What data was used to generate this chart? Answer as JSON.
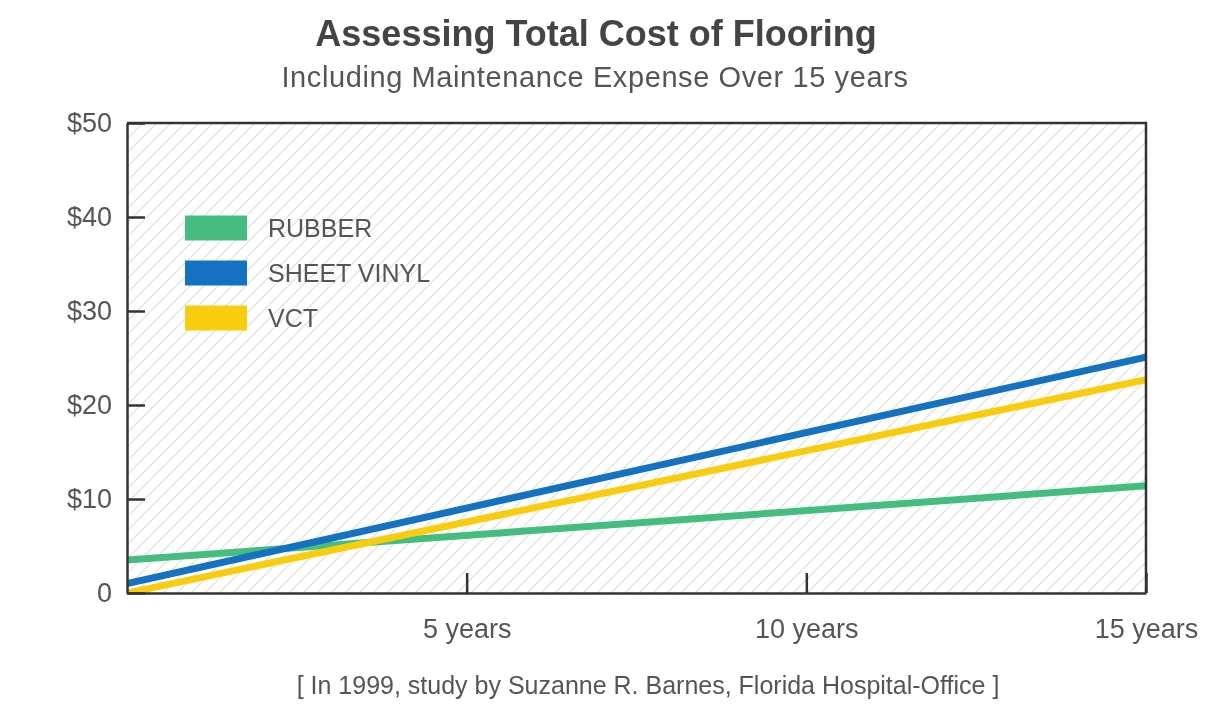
{
  "chart_data": {
    "type": "line",
    "title": "Assessing Total Cost of Flooring",
    "subtitle": "Including Maintenance Expense Over 15 years",
    "annotations": [
      "[ In 1999, study by Suzanne R. Barnes, Florida Hospital-Office ]"
    ],
    "x": [
      0,
      15
    ],
    "series": [
      {
        "name": "RUBBER",
        "color": "#46bd80",
        "values": [
          3.5,
          11.4
        ]
      },
      {
        "name": "SHEET VINYL",
        "color": "#1572c0",
        "values": [
          1,
          25.1
        ]
      },
      {
        "name": "VCT",
        "color": "#f8cc0f",
        "values": [
          0,
          22.7
        ]
      }
    ],
    "xlim": [
      0,
      15
    ],
    "ylim": [
      0,
      50
    ],
    "xticks": [
      {
        "value": 5,
        "label": "5 years"
      },
      {
        "value": 10,
        "label": "10 years"
      },
      {
        "value": 15,
        "label": "15 years"
      }
    ],
    "yticks": [
      0,
      {
        "value": 10,
        "label": "$10"
      },
      {
        "value": 20,
        "label": "$20"
      },
      {
        "value": 30,
        "label": "$30"
      },
      {
        "value": 40,
        "label": "$40"
      },
      {
        "value": 50,
        "label": "$50"
      }
    ],
    "legend": "top left",
    "line_style": "solid"
  }
}
